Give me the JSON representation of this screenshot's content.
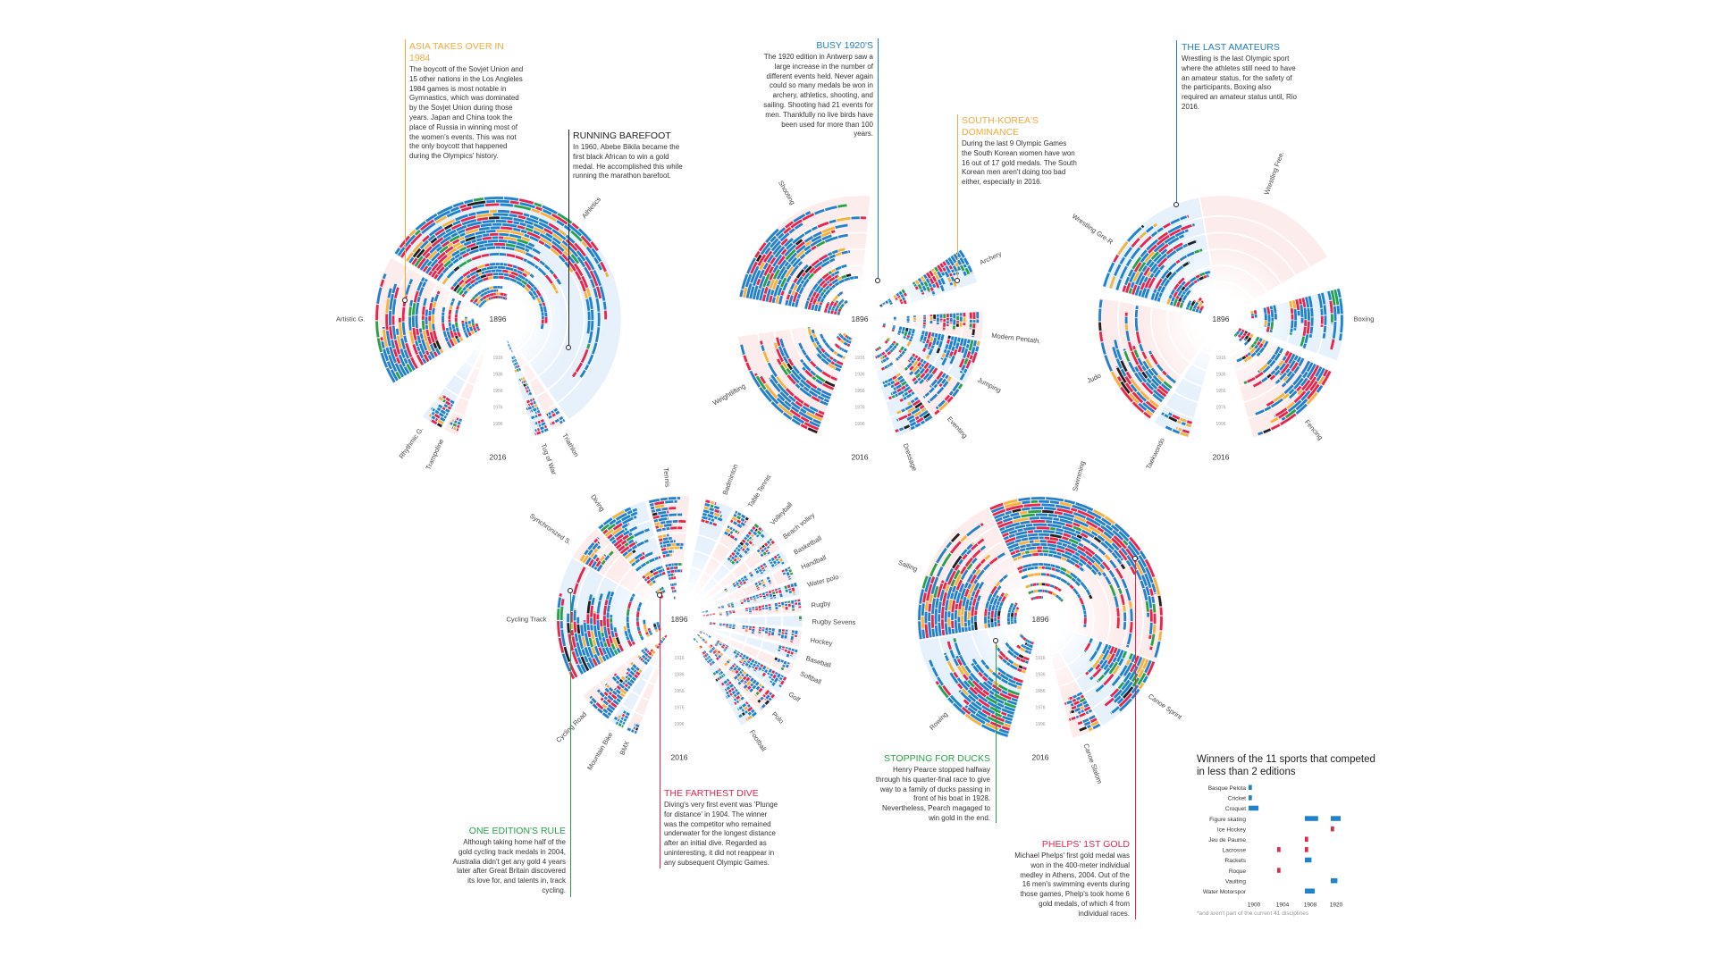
{
  "colors": {
    "blue": "#1f82cc",
    "red": "#e8254b",
    "yellow": "#f7b23a",
    "green": "#27a24a",
    "black": "#222222",
    "bg_pink": "#fdecec",
    "bg_blue": "#e6f1fc"
  },
  "annotations": [
    {
      "id": "asia",
      "title": "Asia takes over in 1984",
      "color": "#f7a93b",
      "body": "The boycott of the Sovjet Union and 15 other nations in the Los Angleles 1984 games is most notable in Gymnastics, which was dominated by the Sovjet Union during those years. Japan and China took the place of Russia in winning most of the women's events. This was not the only boycott that happened during the Olympics' history."
    },
    {
      "id": "barefoot",
      "title": "Running barefoot",
      "color": "#222222",
      "body": "In 1960, Abebe Bikila became the first black African to win a gold medal. He accomplished this while running the marathon barefoot."
    },
    {
      "id": "busy",
      "title": "Busy 1920'S",
      "color": "#1f7ec8",
      "body": "The 1920 edition in Antwerp saw a large increase in the number of different events held. Never again could so many medals be won in archery, athletics, shooting, and sailing. Shooting had 21 events for men. Thankfully no live birds have been used for more than 100 years."
    },
    {
      "id": "korea",
      "title": "South-Korea's dominance",
      "color": "#f7a93b",
      "body": "During the last 9 Olympic Games the South Korean women have won 16 out of 17 gold medals. The South Korean men aren't doing too bad either, especially in 2016."
    },
    {
      "id": "amateurs",
      "title": "The last amateurs",
      "color": "#1f7ec8",
      "body": "Wrestling is the last Olympic sport where the athletes still need to have an amateur status, for the safety of the participants. Boxing also required an amateur status until, Rio 2016."
    },
    {
      "id": "edition",
      "title": "One edition's rule",
      "color": "#27a24a",
      "body": "Although taking home half of the gold cycling track medals in 2004, Australia didn't get any gold 4 years later after Great Britain discovered its love for, and talents in, track cycling."
    },
    {
      "id": "dive",
      "title": "The farthest dive",
      "color": "#e8254b",
      "body": "Diving's very first event was 'Plunge for distance' in 1904. The winner was the competitor who remained underwater for the longest distance after an initial dive. Regarded as uninteresting, it did not reappear in any subsequent Olympic Games."
    },
    {
      "id": "ducks",
      "title": "Stopping for ducks",
      "color": "#27a24a",
      "body": "Henry Pearce stopped halfway through his quarter-final race to give way to a family of ducks passing in front of his boat in 1928. Nevertheless, Pearch magaged to win gold in the end."
    },
    {
      "id": "phelps",
      "title": "Phelps' 1st gold",
      "color": "#e8254b",
      "body": "Michael Phelps' first gold medal was won in the 400-meter individual medley in Athens, 2004. Out of the 16 men's swimming events during those games, Phelp's took home 6 gold medals, of which 4 from individual races."
    }
  ],
  "chart_data": [
    {
      "type": "bar",
      "polar": true,
      "center_label": "1896",
      "outer_label": "2016",
      "year_ticks": [
        "1916",
        "1936",
        "1956",
        "1976",
        "1996"
      ],
      "categories": [
        "Artistic G.",
        "Athletics",
        "Triathlon",
        "Tug of War",
        "Trampoline",
        "Rhythmic G."
      ]
    },
    {
      "type": "bar",
      "polar": true,
      "center_label": "1896",
      "outer_label": "2016",
      "year_ticks": [
        "1916",
        "1936",
        "1956",
        "1976",
        "1996"
      ],
      "categories": [
        "Shooting",
        "Archery",
        "Modern Pentath.",
        "Jumping",
        "Eventing",
        "Dressage",
        "Weightlifting"
      ]
    },
    {
      "type": "bar",
      "polar": true,
      "center_label": "1896",
      "outer_label": "2016",
      "year_ticks": [
        "1916",
        "1936",
        "1956",
        "1976",
        "1996"
      ],
      "categories": [
        "Wrestling Free.",
        "Boxing",
        "Fencing",
        "Taekwondo",
        "Judo",
        "Wrestling Gre-R"
      ]
    },
    {
      "type": "bar",
      "polar": true,
      "center_label": "1896",
      "outer_label": "2016",
      "year_ticks": [
        "1916",
        "1936",
        "1956",
        "1976",
        "1996"
      ],
      "categories": [
        "Tennis",
        "Badminton",
        "Table Tennis",
        "Volleyball",
        "Beach volley",
        "Basketball",
        "Handball",
        "Water polo",
        "Rugby",
        "Rugby Sevens",
        "Hockey",
        "Baseball",
        "Softball",
        "Golf",
        "Polo",
        "Football",
        "BMX",
        "Mountain Bike",
        "Cycling Road",
        "Cycling Track",
        "Synchronized S.",
        "Diving"
      ]
    },
    {
      "type": "bar",
      "polar": true,
      "center_label": "1896",
      "outer_label": "2016",
      "year_ticks": [
        "1916",
        "1936",
        "1956",
        "1976",
        "1996"
      ],
      "categories": [
        "Swimming",
        "Canoe Sprint",
        "Canoe Slalom",
        "Rowing",
        "Sailing"
      ]
    },
    {
      "type": "bar",
      "title": "Winners of the 11 sports that competed in less than 2 editions",
      "footnote": "*and aren't part of the current 41 disciplines",
      "x_categories": [
        "1900",
        "1904",
        "1908",
        "1920"
      ],
      "rows": [
        {
          "sport": "Basque Pelota",
          "bars": [
            {
              "year": "1900",
              "value": 1,
              "color": "blue"
            }
          ]
        },
        {
          "sport": "Cricket",
          "bars": [
            {
              "year": "1900",
              "value": 1,
              "color": "blue"
            }
          ]
        },
        {
          "sport": "Croquet",
          "bars": [
            {
              "year": "1900",
              "value": 3,
              "color": "blue"
            }
          ]
        },
        {
          "sport": "Figure skating",
          "bars": [
            {
              "year": "1908",
              "value": 4,
              "color": "blue"
            },
            {
              "year": "1920",
              "value": 3,
              "color": "blue"
            }
          ]
        },
        {
          "sport": "Ice Hockey",
          "bars": [
            {
              "year": "1920",
              "value": 1,
              "color": "red"
            }
          ]
        },
        {
          "sport": "Jeu de Paume",
          "bars": [
            {
              "year": "1908",
              "value": 1,
              "color": "red"
            }
          ]
        },
        {
          "sport": "Lacrosse",
          "bars": [
            {
              "year": "1904",
              "value": 1,
              "color": "red"
            },
            {
              "year": "1908",
              "value": 1,
              "color": "red"
            }
          ]
        },
        {
          "sport": "Rackets",
          "bars": [
            {
              "year": "1908",
              "value": 2,
              "color": "blue"
            }
          ]
        },
        {
          "sport": "Roque",
          "bars": [
            {
              "year": "1904",
              "value": 1,
              "color": "red"
            }
          ]
        },
        {
          "sport": "Vaulting",
          "bars": [
            {
              "year": "1920",
              "value": 2,
              "color": "blue"
            }
          ]
        },
        {
          "sport": "Water Motorspor",
          "bars": [
            {
              "year": "1908",
              "value": 3,
              "color": "blue"
            }
          ]
        }
      ]
    }
  ]
}
